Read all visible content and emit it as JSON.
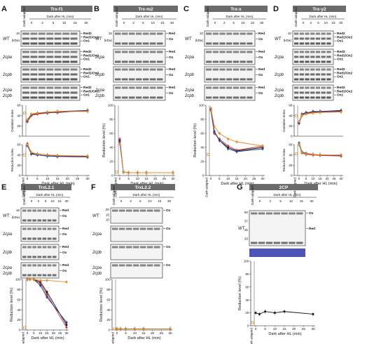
{
  "figure": {
    "panels": [
      {
        "letter": "A",
        "title": "Trx-f1",
        "rows": [
          "WT",
          "2cpa",
          "2cpb",
          "2cpa 2cpb"
        ],
        "bands": [
          [
            "Red2",
            "Red1/Ox2",
            "Ox1"
          ],
          [
            "Red2",
            "Red1/Ox2",
            "Ox1"
          ],
          [
            "Red2",
            "Red1/Ox2",
            "Ox1"
          ],
          [
            "Red2",
            "Red1/Ox2",
            "Ox1"
          ]
        ],
        "chart_type": "double"
      },
      {
        "letter": "B",
        "title": "Trx-m2",
        "rows": [
          "WT",
          "2cpa",
          "2cpb",
          "2cpa 2cpb"
        ],
        "bands": [
          [
            "Red",
            "Ox"
          ],
          [
            "Red",
            "Ox"
          ],
          [
            "Red",
            "Ox"
          ],
          [
            "Red",
            "Ox"
          ]
        ],
        "chart_type": "reduction"
      },
      {
        "letter": "C",
        "title": "Trx-x",
        "rows": [
          "WT",
          "2cpa",
          "2cpb",
          "2cpa 2cpb"
        ],
        "bands": [
          [
            "Red",
            "Ox"
          ],
          [
            "Red",
            "Ox"
          ],
          [
            "Red",
            "Ox"
          ],
          [
            "Red",
            "Ox"
          ]
        ],
        "chart_type": "reduction"
      },
      {
        "letter": "D",
        "title": "Trx-y2",
        "rows": [
          "WT",
          "2cpa",
          "2cpb",
          "2cpa 2cpb"
        ],
        "bands": [
          [
            "Red2",
            "Red1/Ox2",
            "Ox1"
          ],
          [
            "Red2",
            "Red1/Ox2",
            "Ox1"
          ],
          [
            "Red2",
            "Red1/Ox2",
            "Ox1"
          ],
          [
            "Red2",
            "Red1/Ox2",
            "Ox1"
          ]
        ],
        "chart_type": "double"
      },
      {
        "letter": "E",
        "title": "TrxL2.1",
        "rows": [
          "WT",
          "2cpa",
          "2cpb",
          "2cpa 2cpb"
        ],
        "bands": [
          [
            "Red",
            "Ox"
          ],
          [
            "Red",
            "Ox"
          ],
          [
            "Red",
            "Ox"
          ],
          [
            "Red",
            "Ox"
          ]
        ],
        "chart_type": "reduction"
      },
      {
        "letter": "F",
        "title": "TrxL2.2",
        "rows": [
          "WT",
          "2cpa",
          "2cpb",
          "2cpa 2cpb"
        ],
        "bands": [
          [
            "Ox"
          ],
          [
            "Ox"
          ],
          [
            "Ox"
          ],
          [
            "Ox"
          ]
        ],
        "chart_type": "reduction"
      },
      {
        "letter": "G",
        "title": "2CP",
        "rows": [
          "WT"
        ],
        "bands": [
          [
            "Ox",
            "Red"
          ]
        ],
        "chart_type": "reduction"
      }
    ],
    "dark_adapted": "Dark-adapted",
    "time_header": "Dark after HL (min)",
    "time_points": [
      "0",
      "2",
      "5",
      "10",
      "15",
      "30"
    ],
    "kda": "(kDa)",
    "mw": {
      "A": "15",
      "B": "15",
      "C": "10",
      "D": "10",
      "E": "15",
      "F": [
        "20",
        "15",
        "10"
      ],
      "G": [
        "50",
        "37",
        "25",
        "20"
      ]
    },
    "y_reduction": "Reduction level (%)",
    "y_oxidation": "Oxidation index",
    "y_reduction_index": "Reduction index",
    "x_label": "Dark after HL (min)",
    "x_ticks": [
      "0",
      "5",
      "10",
      "15",
      "20",
      "25",
      "30"
    ],
    "y_ticks": [
      "0",
      "20",
      "40",
      "60",
      "80",
      "100"
    ],
    "colors": {
      "wt": "#111111",
      "2cpa": "#d0312d",
      "2cpb": "#1f3d99",
      "double": "#e68a1f",
      "header": "#6b6b6b"
    }
  },
  "chart_data": [
    {
      "panel": "A",
      "type": "line",
      "title": "",
      "xlabel": "Dark after HL (min)",
      "ylabel": "Oxidation index",
      "x": [
        0,
        2,
        5,
        10,
        15,
        30
      ],
      "series": [
        {
          "name": "WT",
          "values": [
            30,
            42,
            44,
            46,
            46,
            50
          ]
        },
        {
          "name": "2cpa",
          "values": [
            28,
            40,
            43,
            45,
            47,
            49
          ]
        },
        {
          "name": "2cpb",
          "values": [
            30,
            42,
            45,
            46,
            48,
            50
          ]
        },
        {
          "name": "2cpa 2cpb",
          "values": [
            32,
            43,
            45,
            47,
            48,
            48
          ]
        }
      ],
      "dark_adapted": 45
    },
    {
      "panel": "A",
      "type": "line",
      "title": "",
      "xlabel": "Dark after HL (min)",
      "ylabel": "Reduction index",
      "x": [
        0,
        2,
        5,
        10,
        15,
        30
      ],
      "series": [
        {
          "name": "WT",
          "values": [
            60,
            42,
            40,
            38,
            37,
            36
          ]
        },
        {
          "name": "2cpa",
          "values": [
            62,
            44,
            42,
            40,
            38,
            37
          ]
        },
        {
          "name": "2cpb",
          "values": [
            58,
            43,
            40,
            38,
            37,
            36
          ]
        },
        {
          "name": "2cpa 2cpb",
          "values": [
            60,
            45,
            42,
            40,
            39,
            38
          ]
        }
      ],
      "dark_adapted": 40
    },
    {
      "panel": "B",
      "type": "line",
      "title": "",
      "xlabel": "Dark after HL (min)",
      "ylabel": "Reduction level (%)",
      "x": [
        0,
        2,
        5,
        10,
        15,
        30
      ],
      "ylim": [
        0,
        100
      ],
      "series": [
        {
          "name": "WT",
          "values": [
            50,
            5,
            4,
            4,
            4,
            4
          ]
        },
        {
          "name": "2cpa",
          "values": [
            52,
            5,
            4,
            4,
            4,
            4
          ]
        },
        {
          "name": "2cpb",
          "values": [
            48,
            5,
            4,
            4,
            4,
            4
          ]
        },
        {
          "name": "2cpa 2cpb",
          "values": [
            45,
            5,
            4,
            4,
            4,
            4
          ]
        }
      ],
      "dark_adapted": 5
    },
    {
      "panel": "C",
      "type": "line",
      "title": "",
      "xlabel": "Dark after HL (min)",
      "ylabel": "Reduction level (%)",
      "x": [
        0,
        2,
        5,
        10,
        15,
        30
      ],
      "ylim": [
        0,
        100
      ],
      "series": [
        {
          "name": "WT",
          "values": [
            95,
            62,
            50,
            40,
            35,
            40
          ]
        },
        {
          "name": "2cpa",
          "values": [
            93,
            60,
            52,
            42,
            36,
            42
          ]
        },
        {
          "name": "2cpb",
          "values": [
            95,
            63,
            50,
            38,
            34,
            38
          ]
        },
        {
          "name": "2cpa 2cpb",
          "values": [
            96,
            70,
            60,
            52,
            48,
            42
          ]
        }
      ],
      "dark_adapted": 30
    },
    {
      "panel": "D",
      "type": "line",
      "title": "",
      "xlabel": "Dark after HL (min)",
      "ylabel": "Oxidation index",
      "x": [
        0,
        2,
        5,
        10,
        15,
        30
      ],
      "series": [
        {
          "name": "WT",
          "values": [
            25,
            42,
            45,
            48,
            48,
            50
          ]
        },
        {
          "name": "2cpa",
          "values": [
            27,
            40,
            44,
            46,
            47,
            48
          ]
        },
        {
          "name": "2cpb",
          "values": [
            26,
            43,
            46,
            47,
            48,
            49
          ]
        },
        {
          "name": "2cpa 2cpb",
          "values": [
            28,
            41,
            43,
            45,
            46,
            47
          ]
        }
      ],
      "dark_adapted": 40
    },
    {
      "panel": "D",
      "type": "line",
      "title": "",
      "xlabel": "Dark after HL (min)",
      "ylabel": "Reduction index",
      "x": [
        0,
        2,
        5,
        10,
        15,
        30
      ],
      "series": [
        {
          "name": "WT",
          "values": [
            62,
            45,
            42,
            40,
            40,
            38
          ]
        },
        {
          "name": "2cpa",
          "values": [
            60,
            44,
            41,
            40,
            39,
            38
          ]
        },
        {
          "name": "2cpb",
          "values": [
            63,
            46,
            43,
            41,
            40,
            39
          ]
        },
        {
          "name": "2cpa 2cpb",
          "values": [
            61,
            45,
            42,
            41,
            40,
            40
          ]
        }
      ],
      "dark_adapted": 42
    },
    {
      "panel": "E",
      "type": "line",
      "title": "",
      "xlabel": "Dark after HL (min)",
      "ylabel": "Reduction level (%)",
      "x": [
        0,
        2,
        5,
        10,
        15,
        30
      ],
      "ylim": [
        0,
        100
      ],
      "series": [
        {
          "name": "WT",
          "values": [
            100,
            100,
            100,
            95,
            75,
            10
          ]
        },
        {
          "name": "2cpa",
          "values": [
            100,
            100,
            100,
            92,
            70,
            5
          ]
        },
        {
          "name": "2cpb",
          "values": [
            100,
            100,
            100,
            88,
            65,
            15
          ]
        },
        {
          "name": "2cpa 2cpb",
          "values": [
            100,
            100,
            100,
            98,
            98,
            95
          ]
        }
      ],
      "dark_adapted": 5
    },
    {
      "panel": "F",
      "type": "line",
      "title": "",
      "xlabel": "Dark after HL (min)",
      "ylabel": "Reduction level (%)",
      "x": [
        0,
        2,
        5,
        10,
        15,
        30
      ],
      "ylim": [
        0,
        100
      ],
      "series": [
        {
          "name": "WT",
          "values": [
            2,
            2,
            2,
            2,
            2,
            2
          ]
        },
        {
          "name": "2cpa",
          "values": [
            2,
            2,
            2,
            2,
            2,
            2
          ]
        },
        {
          "name": "2cpb",
          "values": [
            2,
            2,
            2,
            2,
            2,
            2
          ]
        },
        {
          "name": "2cpa 2cpb",
          "values": [
            2,
            2,
            2,
            2,
            2,
            2
          ]
        }
      ],
      "dark_adapted": 2
    },
    {
      "panel": "G",
      "type": "line",
      "title": "",
      "xlabel": "Dark after HL (min)",
      "ylabel": "Reduction level (%)",
      "x": [
        0,
        2,
        5,
        10,
        15,
        30
      ],
      "ylim": [
        0,
        100
      ],
      "series": [
        {
          "name": "WT",
          "values": [
            20,
            18,
            22,
            20,
            22,
            18
          ]
        }
      ],
      "dark_adapted": 5
    }
  ]
}
